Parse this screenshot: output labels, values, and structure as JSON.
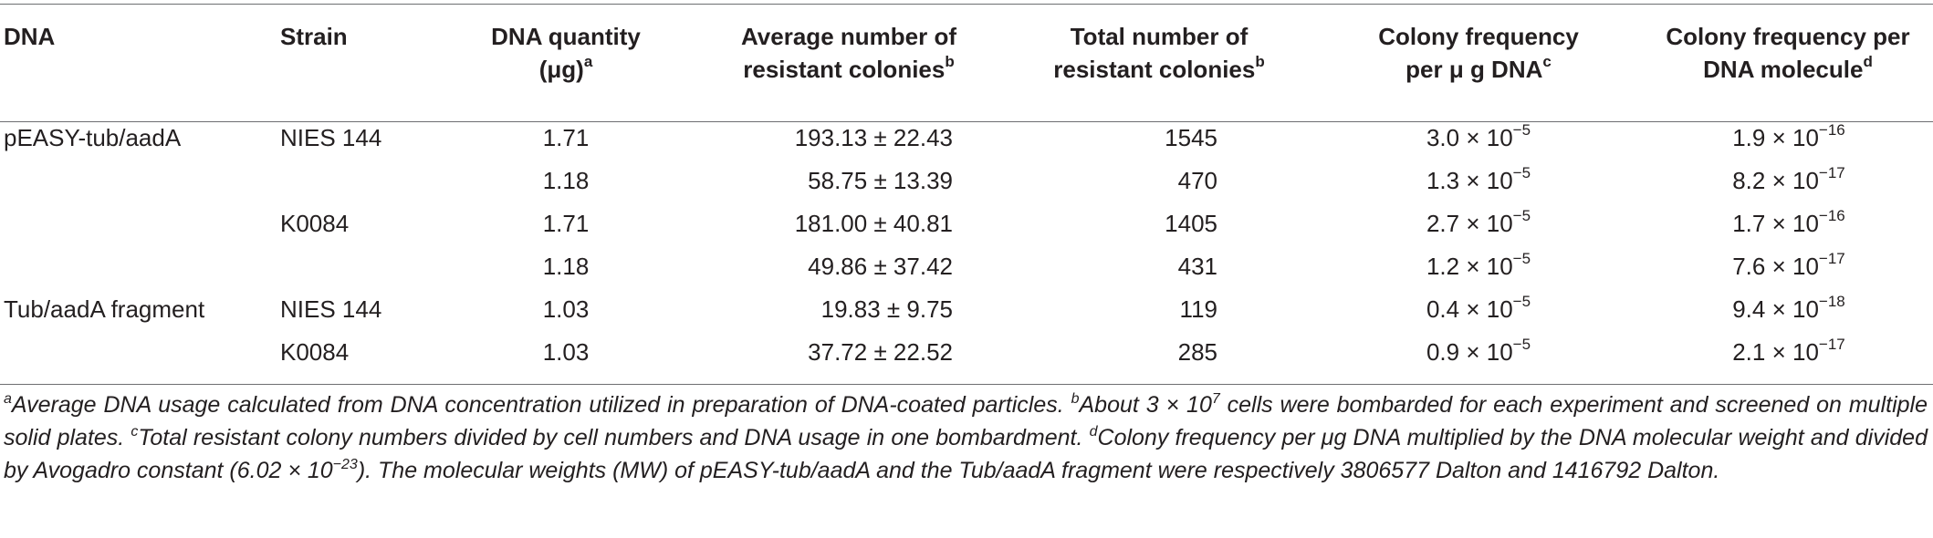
{
  "headers": {
    "dna": "DNA",
    "strain": "Strain",
    "quantity": "DNA quantity",
    "quantity_unit": "(μg)",
    "quantity_sup": "a",
    "average_l1": "Average number of",
    "average_l2": "resistant colonies",
    "average_sup": "b",
    "total_l1": "Total number of",
    "total_l2": "resistant colonies",
    "total_sup": "b",
    "freq_ug_l1": "Colony frequency",
    "freq_ug_l2": "per μ g DNA",
    "freq_ug_sup": "c",
    "freq_mol_l1": "Colony frequency per",
    "freq_mol_l2": "DNA molecule",
    "freq_mol_sup": "d"
  },
  "rows": [
    {
      "dna": "pEASY-tub/aadA",
      "strain": "NIES 144",
      "quantity": "1.71",
      "average": "193.13 ± 22.43",
      "total": "1545",
      "freq_ug_base": "3.0 × 10",
      "freq_ug_exp": "−5",
      "freq_mol_base": "1.9 × 10",
      "freq_mol_exp": "−16"
    },
    {
      "dna": "",
      "strain": "",
      "quantity": "1.18",
      "average": "58.75 ± 13.39",
      "total": "470",
      "freq_ug_base": "1.3 × 10",
      "freq_ug_exp": "−5",
      "freq_mol_base": "8.2 × 10",
      "freq_mol_exp": "−17"
    },
    {
      "dna": "",
      "strain": "K0084",
      "quantity": "1.71",
      "average": "181.00 ± 40.81",
      "total": "1405",
      "freq_ug_base": "2.7 × 10",
      "freq_ug_exp": "−5",
      "freq_mol_base": "1.7 × 10",
      "freq_mol_exp": "−16"
    },
    {
      "dna": "",
      "strain": "",
      "quantity": "1.18",
      "average": "49.86 ± 37.42",
      "total": "431",
      "freq_ug_base": "1.2 × 10",
      "freq_ug_exp": "−5",
      "freq_mol_base": "7.6 × 10",
      "freq_mol_exp": "−17"
    },
    {
      "dna": "Tub/aadA fragment",
      "strain": "NIES 144",
      "quantity": "1.03",
      "average": "19.83 ± 9.75",
      "total": "119",
      "freq_ug_base": "0.4 × 10",
      "freq_ug_exp": "−5",
      "freq_mol_base": "9.4 × 10",
      "freq_mol_exp": "−18"
    },
    {
      "dna": "",
      "strain": "K0084",
      "quantity": "1.03",
      "average": "37.72 ± 22.52",
      "total": "285",
      "freq_ug_base": "0.9 × 10",
      "freq_ug_exp": "−5",
      "freq_mol_base": "2.1 × 10",
      "freq_mol_exp": "−17"
    }
  ],
  "footnote": {
    "a_mark": "a",
    "a_text": "Average DNA usage calculated from DNA concentration utilized in preparation of DNA-coated particles. ",
    "b_mark": "b",
    "b_text_1": "About 3 × 10",
    "b_exp": "7",
    "b_text_2": " cells were bombarded for each experiment and screened on multiple solid plates. ",
    "c_mark": "c",
    "c_text": "Total resistant colony numbers divided by cell numbers and DNA usage in one bombardment. ",
    "d_mark": "d",
    "d_text_1": "Colony frequency per μg DNA multiplied by the DNA molecular weight and divided by Avogadro constant (6.02 × 10",
    "d_exp": "−23",
    "d_text_2": "). The molecular weights (MW) of pEASY-tub/aadA and the Tub/aadA fragment were respectively 3806577 Dalton and 1416792 Dalton."
  }
}
